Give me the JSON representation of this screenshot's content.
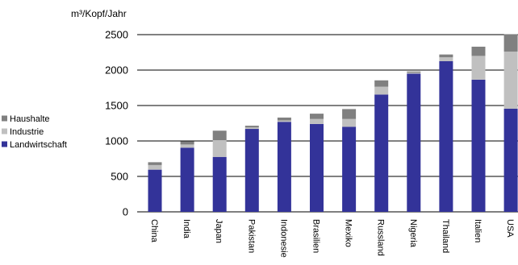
{
  "chart_data": {
    "type": "bar",
    "stacked": true,
    "y_unit_label": "m³/Kopf/Jahr",
    "ylim": [
      0,
      2500
    ],
    "yticks": [
      0,
      500,
      1000,
      1500,
      2000,
      2500
    ],
    "grid": true,
    "legend_position": "left",
    "categories": [
      "China",
      "India",
      "Japan",
      "Pakistan",
      "Indonesie",
      "Brasilien",
      "Mexiko",
      "Russland",
      "Nigeria",
      "Thailand",
      "Italien",
      "USA"
    ],
    "series": [
      {
        "name": "Landwirtschaft",
        "color": "#333399",
        "values": [
          595,
          905,
          775,
          1170,
          1270,
          1240,
          1200,
          1655,
          1950,
          2125,
          1865,
          1455
        ]
      },
      {
        "name": "Industrie",
        "color": "#c0c0c0",
        "values": [
          65,
          45,
          235,
          20,
          20,
          70,
          110,
          110,
          15,
          55,
          335,
          805
        ]
      },
      {
        "name": "Haushalte",
        "color": "#808080",
        "values": [
          40,
          45,
          135,
          25,
          40,
          75,
          140,
          90,
          15,
          40,
          130,
          245
        ]
      }
    ]
  }
}
